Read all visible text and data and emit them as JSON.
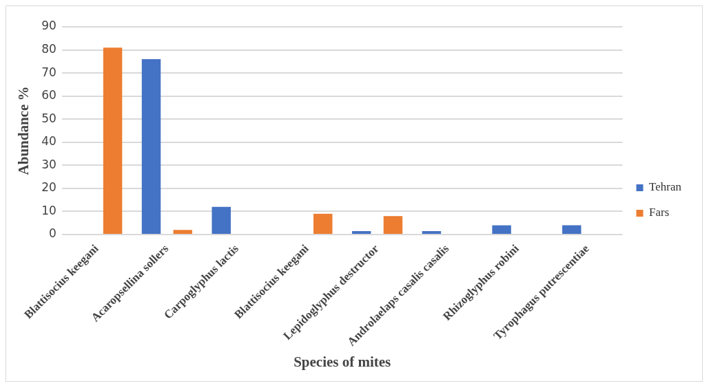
{
  "chart_data": {
    "type": "bar",
    "xlabel": "Species of mites",
    "ylabel": "Abundance %",
    "categories": [
      "Blattisocius keegani",
      "Acaropsellina sollers",
      "Carpoglyphus lactis",
      "Blattisocius keegani",
      "Lepidoglyphus destructor",
      "Androlaelaps casalis casalis",
      "Rhizoglyphus robini",
      "Tyrophagus putrescentiae"
    ],
    "series": [
      {
        "name": "Tehran",
        "color": "#4472c4",
        "values": [
          0,
          76,
          12,
          0,
          1.5,
          1.5,
          4,
          4
        ]
      },
      {
        "name": "Fars",
        "color": "#ed7d31",
        "values": [
          81,
          2,
          0,
          9,
          8,
          0,
          0,
          0
        ]
      }
    ],
    "ylim": [
      0,
      90
    ],
    "yticks": [
      0,
      10,
      20,
      30,
      40,
      50,
      60,
      70,
      80,
      90
    ],
    "grid": "y",
    "legend": "right"
  }
}
